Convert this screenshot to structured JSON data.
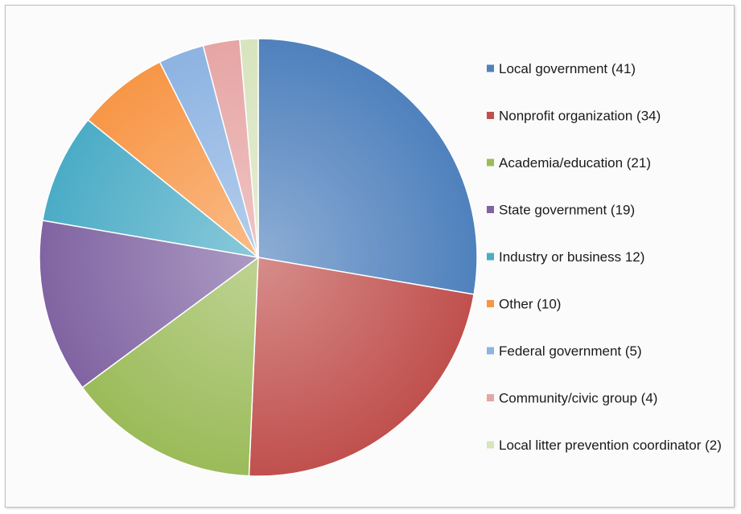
{
  "chart_data": {
    "type": "pie",
    "title": "",
    "legend_position": "right",
    "start_angle_deg": 0,
    "direction": "clockwise",
    "slices": [
      {
        "label": "Local government (41)",
        "value": 41,
        "color": "#4f81bd"
      },
      {
        "label": "Nonprofit organization (34)",
        "value": 34,
        "color": "#c0504d"
      },
      {
        "label": "Academia/education (21)",
        "value": 21,
        "color": "#9bbb59"
      },
      {
        "label": "State government (19)",
        "value": 19,
        "color": "#8064a2"
      },
      {
        "label": "Industry or business 12)",
        "value": 12,
        "color": "#4bacc6"
      },
      {
        "label": "Other (10)",
        "value": 10,
        "color": "#f79646"
      },
      {
        "label": "Federal government (5)",
        "value": 5,
        "color": "#8db3e2"
      },
      {
        "label": "Community/civic group (4)",
        "value": 4,
        "color": "#e6a5a4"
      },
      {
        "label": "Local litter prevention coordinator (2)",
        "value": 2,
        "color": "#d7e4bd"
      }
    ]
  }
}
